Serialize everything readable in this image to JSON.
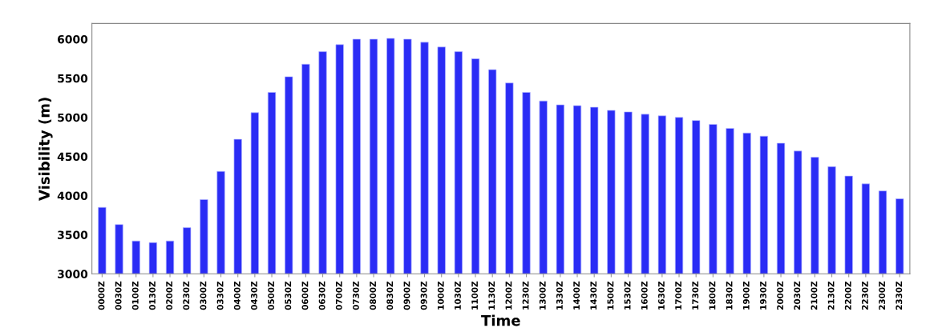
{
  "chart_data": {
    "type": "bar",
    "xlabel": "Time",
    "ylabel": "Visibility (m)",
    "categories": [
      "0000Z",
      "0030Z",
      "0100Z",
      "0130Z",
      "0200Z",
      "0230Z",
      "0300Z",
      "0330Z",
      "0400Z",
      "0430Z",
      "0500Z",
      "0530Z",
      "0600Z",
      "0630Z",
      "0700Z",
      "0730Z",
      "0800Z",
      "0830Z",
      "0900Z",
      "0930Z",
      "1000Z",
      "1030Z",
      "1100Z",
      "1130Z",
      "1200Z",
      "1230Z",
      "1300Z",
      "1330Z",
      "1400Z",
      "1430Z",
      "1500Z",
      "1530Z",
      "1600Z",
      "1630Z",
      "1700Z",
      "1730Z",
      "1800Z",
      "1830Z",
      "1900Z",
      "1930Z",
      "2000Z",
      "2030Z",
      "2100Z",
      "2130Z",
      "2200Z",
      "2230Z",
      "2300Z",
      "2330Z"
    ],
    "values": [
      3850,
      3630,
      3420,
      3400,
      3420,
      3590,
      3950,
      4310,
      4720,
      5060,
      5320,
      5520,
      5680,
      5840,
      5930,
      6000,
      6000,
      6010,
      6000,
      5960,
      5900,
      5840,
      5750,
      5610,
      5440,
      5320,
      5210,
      5160,
      5150,
      5130,
      5090,
      5070,
      5040,
      5020,
      5000,
      4960,
      4910,
      4860,
      4800,
      4760,
      4670,
      4570,
      4490,
      4370,
      4250,
      4150,
      4060,
      3960
    ],
    "color": "#2a2cf5",
    "ylim": [
      3000,
      6200
    ],
    "yticks": [
      3000,
      3500,
      4000,
      4500,
      5000,
      5500,
      6000
    ],
    "grid": false
  }
}
